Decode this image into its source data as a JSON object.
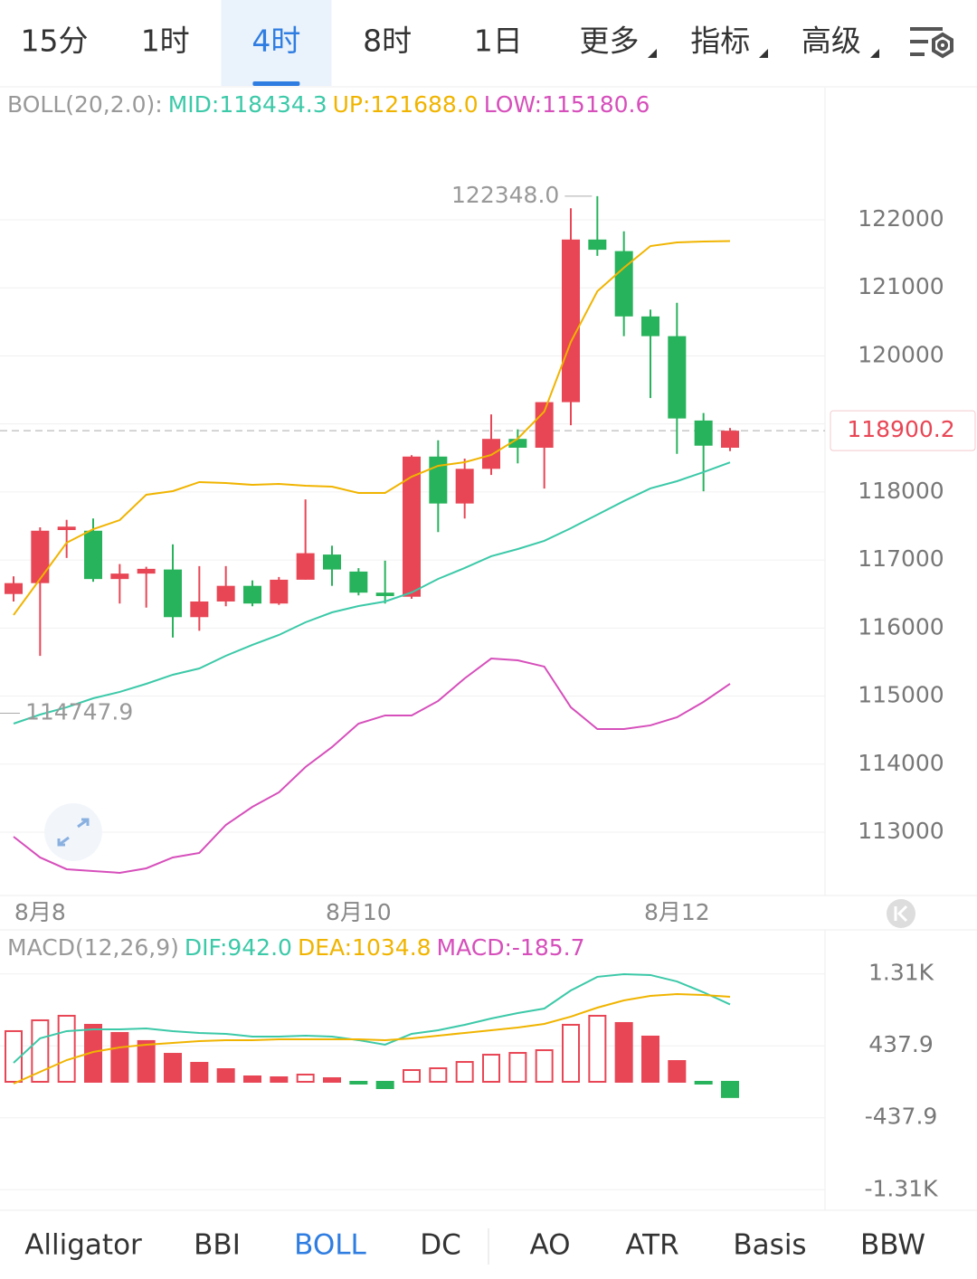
{
  "toolbar": {
    "tabs": [
      "15分",
      "1时",
      "4时",
      "8时",
      "1日",
      "更多",
      "指标",
      "高级"
    ],
    "selected": 2
  },
  "chart_data": [
    {
      "type": "candlestick",
      "indicator": "BOLL(20,2.0):",
      "categories": [
        null,
        "8月8",
        null,
        null,
        null,
        null,
        null,
        null,
        null,
        null,
        null,
        null,
        null,
        "8月10",
        null,
        null,
        null,
        null,
        null,
        null,
        null,
        null,
        null,
        null,
        null,
        "8月12",
        null,
        null
      ],
      "open": [
        116500,
        116660,
        117440,
        117430,
        116720,
        116800,
        116860,
        116160,
        116390,
        116620,
        116360,
        116710,
        117080,
        116830,
        116520,
        116460,
        118520,
        117830,
        118340,
        118780,
        118650,
        119320,
        121710,
        121540,
        120580,
        120290,
        119050,
        118650
      ],
      "high": [
        116760,
        117480,
        117590,
        117610,
        116940,
        116900,
        117230,
        116910,
        116910,
        116700,
        116750,
        117890,
        117210,
        116880,
        116990,
        118540,
        118760,
        118490,
        119140,
        118920,
        119320,
        122170,
        122348,
        121830,
        120680,
        120780,
        119160,
        118940
      ],
      "low": [
        116390,
        115590,
        117030,
        116680,
        116360,
        116300,
        115860,
        115960,
        116320,
        116320,
        116340,
        116710,
        116620,
        116480,
        116360,
        116430,
        117410,
        117610,
        118250,
        118420,
        118050,
        118980,
        121470,
        120290,
        119380,
        118560,
        118010,
        118600
      ],
      "close": [
        116660,
        117430,
        117490,
        116720,
        116800,
        116870,
        116160,
        116390,
        116620,
        116360,
        116710,
        117100,
        116860,
        116520,
        116470,
        118520,
        117830,
        118340,
        118780,
        118650,
        119320,
        121710,
        121560,
        120580,
        120290,
        119080,
        118680,
        118900.2
      ],
      "up_color": "#e84655",
      "down_color": "#27b35b",
      "series": [
        {
          "legend": "MID:118434.3",
          "color": "#3cc9a8",
          "values": [
            114595,
            114728,
            114835,
            114967,
            115061,
            115180,
            115313,
            115406,
            115592,
            115752,
            115898,
            116084,
            116230,
            116323,
            116390,
            116523,
            116722,
            116882,
            117055,
            117161,
            117281,
            117467,
            117666,
            117866,
            118052,
            118158,
            118291,
            118434.3
          ]
        },
        {
          "legend": "UP:121688.0",
          "color": "#f0b400",
          "values": [
            116191,
            116722,
            117254,
            117453,
            117586,
            117959,
            118012,
            118145,
            118131,
            118105,
            118118,
            118092,
            118078,
            117985,
            117985,
            118224,
            118384,
            118437,
            118544,
            118783,
            119182,
            120205,
            120950,
            121295,
            121614,
            121668,
            121681,
            121688
          ]
        },
        {
          "legend": "LOW:115180.6",
          "color": "#d64fbb",
          "values": [
            112933,
            112628,
            112455,
            112428,
            112402,
            112468,
            112628,
            112694,
            113106,
            113372,
            113585,
            113957,
            114250,
            114595,
            114715,
            114715,
            114928,
            115260,
            115552,
            115526,
            115433,
            114835,
            114515,
            114515,
            114569,
            114688,
            114914,
            115180.6
          ]
        }
      ],
      "annotations": [
        {
          "value": 122348,
          "label": "122348.0"
        },
        {
          "value": 114747.9,
          "label": "114747.9"
        }
      ],
      "last_price": {
        "value": 118900.2,
        "label": "118900.2"
      },
      "ylim": [
        112069,
        123941
      ],
      "yticks": [
        113000,
        114000,
        115000,
        116000,
        117000,
        118000,
        119000,
        120000,
        121000,
        122000
      ],
      "grid": true
    },
    {
      "type": "macd",
      "indicator": "MACD(12,26,9)",
      "values": [
        617,
        749,
        804,
        694,
        595,
        496,
        341,
        231,
        154,
        66,
        55,
        88,
        44,
        -8,
        -77,
        143,
        165,
        242,
        330,
        352,
        385,
        694,
        804,
        716,
        551,
        253,
        -6,
        -185.7
      ],
      "legend": "MACD:-185.7",
      "legend_color": "#d64fbb",
      "up_color": "#e84655",
      "down_color": "#27b35b",
      "series": [
        {
          "legend": "DIF:942.0",
          "color": "#3cc9a8",
          "values": [
            231,
            529,
            617,
            639,
            639,
            650,
            617,
            595,
            584,
            551,
            551,
            562,
            551,
            507,
            452,
            584,
            628,
            694,
            771,
            837,
            892,
            1112,
            1278,
            1311,
            1300,
            1222,
            1090,
            942.0
          ]
        },
        {
          "legend": "DEA:1034.8",
          "color": "#f0b400",
          "values": [
            -22,
            121,
            264,
            363,
            419,
            452,
            474,
            496,
            507,
            507,
            518,
            518,
            518,
            518,
            507,
            529,
            562,
            595,
            628,
            661,
            705,
            793,
            903,
            991,
            1046,
            1068,
            1057,
            1034.8
          ]
        }
      ],
      "ylim": [
        -1564,
        1828
      ],
      "yticks": [
        {
          "value": 1313.7,
          "label": "1.31K"
        },
        437.9,
        -437.9,
        {
          "value": -1313.7,
          "label": "-1.31K"
        }
      ],
      "grid": true
    }
  ],
  "indicator_tabs": {
    "tabs": [
      "Alligator",
      "BBI",
      "BOLL",
      "DC",
      "AO",
      "ATR",
      "Basis",
      "BBW"
    ],
    "selected": 2
  }
}
